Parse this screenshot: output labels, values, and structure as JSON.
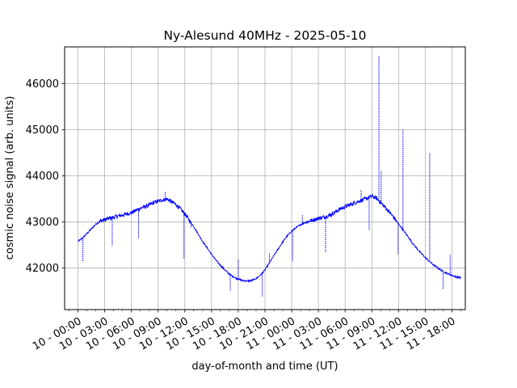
{
  "chart_data": {
    "type": "line",
    "title": "Ny-Alesund 40MHz - 2025-05-10",
    "xlabel": "day-of-month and time (UT)",
    "ylabel": "cosmic noise signal (arb. units)",
    "x_unit": "hours since 2025-05-10 00:00 UT",
    "xlim": [
      -1.5,
      43.5
    ],
    "ylim": [
      41100,
      46800
    ],
    "grid": true,
    "x_ticks": [
      {
        "value": 0,
        "label": "10 - 00:00"
      },
      {
        "value": 3,
        "label": "10 - 03:00"
      },
      {
        "value": 6,
        "label": "10 - 06:00"
      },
      {
        "value": 9,
        "label": "10 - 09:00"
      },
      {
        "value": 12,
        "label": "10 - 12:00"
      },
      {
        "value": 15,
        "label": "10 - 15:00"
      },
      {
        "value": 18,
        "label": "10 - 18:00"
      },
      {
        "value": 21,
        "label": "10 - 21:00"
      },
      {
        "value": 24,
        "label": "11 - 00:00"
      },
      {
        "value": 27,
        "label": "11 - 03:00"
      },
      {
        "value": 30,
        "label": "11 - 06:00"
      },
      {
        "value": 33,
        "label": "11 - 09:00"
      },
      {
        "value": 36,
        "label": "11 - 12:00"
      },
      {
        "value": 39,
        "label": "11 - 15:00"
      },
      {
        "value": 42,
        "label": "11 - 18:00"
      }
    ],
    "y_ticks": [
      {
        "value": 42000,
        "label": "42000"
      },
      {
        "value": 43000,
        "label": "43000"
      },
      {
        "value": 44000,
        "label": "44000"
      },
      {
        "value": 45000,
        "label": "45000"
      },
      {
        "value": 46000,
        "label": "46000"
      }
    ],
    "series": [
      {
        "color": "#0000ff",
        "x": [
          0.0,
          0.5,
          1.0,
          1.5,
          2.0,
          2.5,
          3.0,
          3.5,
          4.0,
          4.5,
          5.0,
          5.5,
          6.0,
          6.5,
          7.0,
          7.5,
          8.0,
          8.5,
          9.0,
          9.5,
          10.0,
          10.5,
          11.0,
          11.5,
          12.0,
          12.5,
          13.0,
          13.5,
          14.0,
          14.5,
          15.0,
          15.5,
          16.0,
          16.5,
          17.0,
          17.5,
          18.0,
          18.5,
          19.0,
          19.5,
          20.0,
          20.5,
          21.0,
          21.5,
          22.0,
          22.5,
          23.0,
          23.5,
          24.0,
          24.5,
          25.0,
          25.5,
          26.0,
          26.5,
          27.0,
          27.5,
          28.0,
          28.5,
          29.0,
          29.5,
          30.0,
          30.5,
          31.0,
          31.5,
          32.0,
          32.5,
          33.0,
          33.5,
          34.0,
          34.5,
          35.0,
          35.5,
          36.0,
          36.5,
          37.0,
          37.5,
          38.0,
          38.5,
          39.0,
          39.5,
          40.0,
          40.5,
          41.0,
          41.5,
          42.0,
          42.5,
          43.0
        ],
        "y": [
          42580,
          42650,
          42750,
          42850,
          42950,
          43020,
          43050,
          43080,
          43100,
          43130,
          43150,
          43180,
          43200,
          43250,
          43300,
          43330,
          43370,
          43420,
          43450,
          43480,
          43500,
          43440,
          43380,
          43280,
          43180,
          43040,
          42900,
          42740,
          42580,
          42440,
          42300,
          42170,
          42060,
          41960,
          41870,
          41810,
          41760,
          41730,
          41720,
          41730,
          41770,
          41850,
          41960,
          42110,
          42270,
          42420,
          42570,
          42700,
          42800,
          42880,
          42940,
          42990,
          43020,
          43050,
          43080,
          43100,
          43130,
          43170,
          43230,
          43290,
          43330,
          43370,
          43410,
          43450,
          43480,
          43520,
          43560,
          43520,
          43420,
          43320,
          43210,
          43090,
          42960,
          42830,
          42700,
          42560,
          42440,
          42330,
          42230,
          42140,
          42060,
          41990,
          41930,
          41880,
          41840,
          41810,
          41790
        ]
      }
    ],
    "spikes": [
      {
        "x": 0.55,
        "y": 42150
      },
      {
        "x": 3.85,
        "y": 42480
      },
      {
        "x": 6.8,
        "y": 42650
      },
      {
        "x": 9.8,
        "y": 43650
      },
      {
        "x": 10.4,
        "y": 43500
      },
      {
        "x": 11.9,
        "y": 42200
      },
      {
        "x": 12.7,
        "y": 42880
      },
      {
        "x": 17.1,
        "y": 41500
      },
      {
        "x": 18.0,
        "y": 42200
      },
      {
        "x": 20.7,
        "y": 41380
      },
      {
        "x": 21.5,
        "y": 42330
      },
      {
        "x": 24.1,
        "y": 42150
      },
      {
        "x": 25.2,
        "y": 43150
      },
      {
        "x": 27.8,
        "y": 42330
      },
      {
        "x": 31.8,
        "y": 43700
      },
      {
        "x": 32.7,
        "y": 42820
      },
      {
        "x": 33.8,
        "y": 46600
      },
      {
        "x": 34.05,
        "y": 44100
      },
      {
        "x": 35.95,
        "y": 42300
      },
      {
        "x": 36.5,
        "y": 45000
      },
      {
        "x": 39.5,
        "y": 44500
      },
      {
        "x": 41.0,
        "y": 41550
      },
      {
        "x": 41.8,
        "y": 42300
      }
    ]
  }
}
